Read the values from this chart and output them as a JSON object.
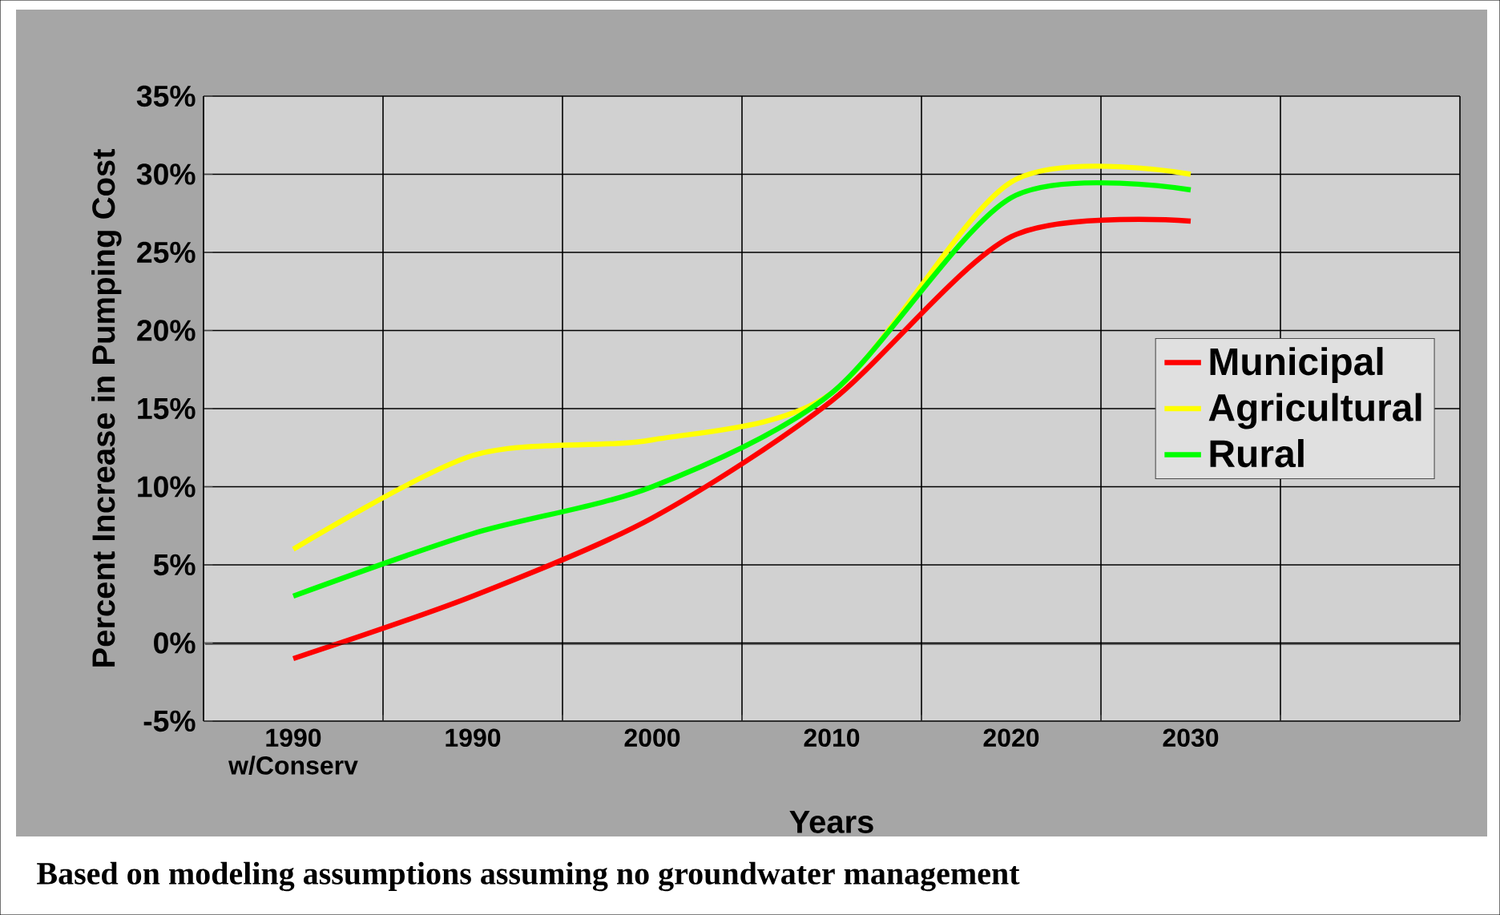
{
  "chart_data": {
    "type": "line",
    "xlabel": "Years",
    "ylabel": "Percent Increase in Pumping Cost",
    "categories": [
      "1990 w/Conserv",
      "1990",
      "2000",
      "2010",
      "2020",
      "2030",
      null
    ],
    "series": [
      {
        "name": "Municipal",
        "color": "#ff0000",
        "values": [
          -1,
          3,
          8,
          15.5,
          26,
          27,
          null
        ]
      },
      {
        "name": "Agricultural",
        "color": "#ffff00",
        "values": [
          6,
          12,
          13,
          16,
          29.5,
          30,
          null
        ]
      },
      {
        "name": "Rural",
        "color": "#00ff00",
        "values": [
          3,
          7,
          10,
          16,
          28.5,
          29,
          null
        ]
      }
    ],
    "ylim": [
      -5,
      35
    ],
    "yticks": [
      {
        "value": -5,
        "label": "-5%"
      },
      {
        "value": 0,
        "label": "0%"
      },
      {
        "value": 5,
        "label": "5%"
      },
      {
        "value": 10,
        "label": "10%"
      },
      {
        "value": 15,
        "label": "15%"
      },
      {
        "value": 20,
        "label": "20%"
      },
      {
        "value": 25,
        "label": "25%"
      },
      {
        "value": 30,
        "label": "30%"
      },
      {
        "value": 35,
        "label": "35%"
      }
    ],
    "grid": true,
    "legend": "right",
    "marker": "none",
    "line_style": "solid",
    "annotations": [
      "Based on modeling assumptions assuming no groundwater management"
    ]
  }
}
